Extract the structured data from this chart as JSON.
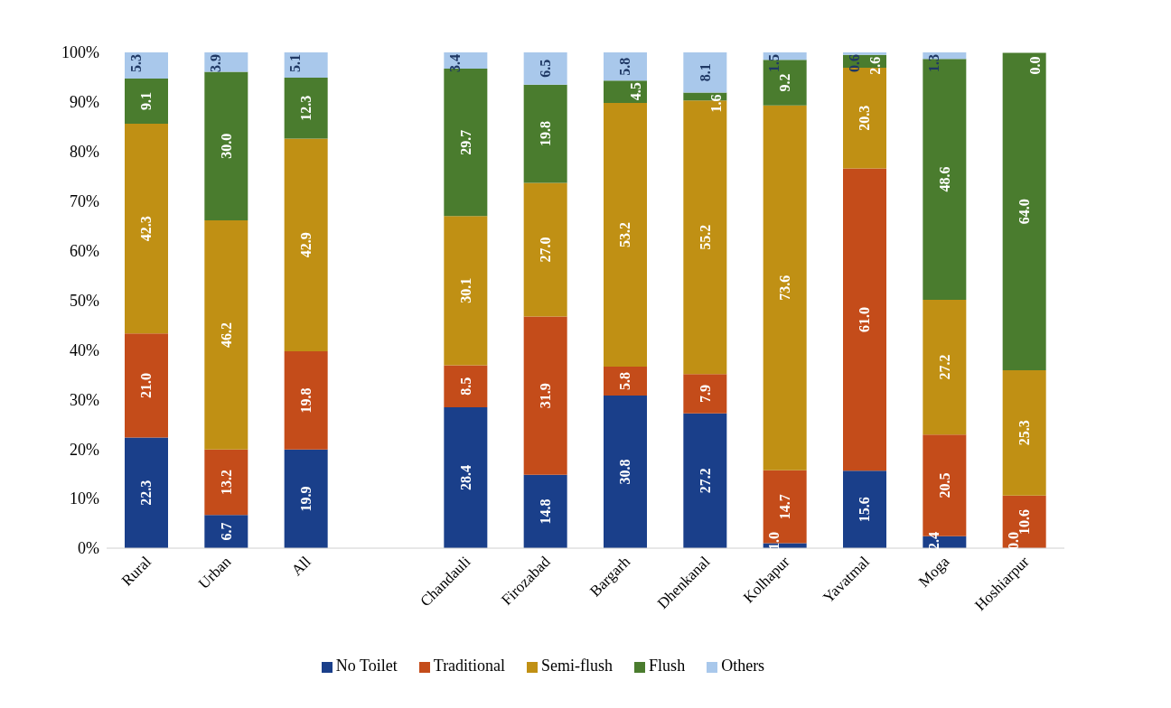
{
  "chart_data": {
    "type": "bar",
    "stacked": true,
    "categories": [
      "Rural",
      "Urban",
      "All",
      null,
      "Chandauli",
      "Firozabad",
      "Bargarh",
      "Dhenkanal",
      "Kolhapur",
      "Yavatmal",
      "Moga",
      "Hoshiarpur"
    ],
    "series": [
      {
        "name": "No Toilet",
        "color": "#1a3f8a",
        "values": [
          22.3,
          6.7,
          19.9,
          null,
          28.4,
          14.8,
          30.8,
          27.2,
          1.0,
          15.6,
          2.4,
          0.0
        ],
        "value_labels": [
          "22.3",
          "6.7",
          "19.9",
          null,
          "28.4",
          "14.8",
          "30.8",
          "27.2",
          "1.0",
          "15.6",
          "2.4",
          "0.0"
        ]
      },
      {
        "name": "Traditional",
        "color": "#c44c1a",
        "values": [
          21.0,
          13.2,
          19.8,
          null,
          8.5,
          31.9,
          5.8,
          7.9,
          14.7,
          61.0,
          20.5,
          10.6
        ],
        "value_labels": [
          "21.0",
          "13.2",
          "19.8",
          null,
          "8.5",
          "31.9",
          "5.8",
          "7.9",
          "14.7",
          "61.0",
          "20.5",
          "10.6"
        ]
      },
      {
        "name": "Semi-flush",
        "color": "#c09014",
        "values": [
          42.3,
          46.2,
          42.9,
          null,
          30.1,
          27.0,
          53.2,
          55.2,
          73.6,
          20.3,
          27.2,
          25.3
        ],
        "value_labels": [
          "42.3",
          "46.2",
          "42.9",
          null,
          "30.1",
          "27.0",
          "53.2",
          "55.2",
          "73.6",
          "20.3",
          "27.2",
          "25.3"
        ]
      },
      {
        "name": "Flush",
        "color": "#4a7c2e",
        "values": [
          9.1,
          30.0,
          12.3,
          null,
          29.7,
          19.8,
          4.5,
          1.6,
          9.2,
          2.6,
          48.6,
          64.0
        ],
        "value_labels": [
          "9.1",
          "30.0",
          "12.3",
          null,
          "29.7",
          "19.8",
          "4.5",
          "1.6",
          "9.2",
          "2.6",
          "48.6",
          "64.0"
        ]
      },
      {
        "name": "Others",
        "color": "#a9c8eb",
        "values": [
          5.3,
          3.9,
          5.1,
          null,
          3.4,
          6.5,
          5.8,
          8.1,
          1.5,
          0.6,
          1.3,
          0.0
        ],
        "value_labels": [
          "5.3",
          "3.9",
          "5.1",
          null,
          "3.4",
          "6.5",
          "5.8",
          "8.1",
          "1.5",
          "0.6",
          "1.3",
          "0.0"
        ]
      }
    ],
    "ylim": [
      0,
      100
    ],
    "yticks": [
      {
        "value": 0,
        "label": "0%"
      },
      {
        "value": 10,
        "label": "10%"
      },
      {
        "value": 20,
        "label": "20%"
      },
      {
        "value": 30,
        "label": "30%"
      },
      {
        "value": 40,
        "label": "40%"
      },
      {
        "value": 50,
        "label": "50%"
      },
      {
        "value": 60,
        "label": "60%"
      },
      {
        "value": 70,
        "label": "70%"
      },
      {
        "value": 80,
        "label": "80%"
      },
      {
        "value": 90,
        "label": "90%"
      },
      {
        "value": 100,
        "label": "100%"
      }
    ],
    "grid": false,
    "legend": "bottom"
  }
}
